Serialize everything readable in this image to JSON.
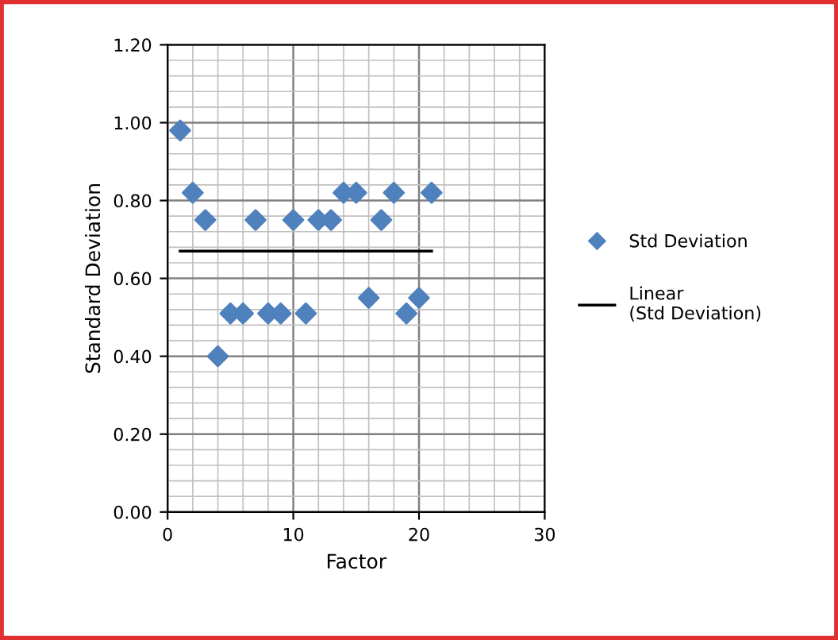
{
  "chart_data": {
    "type": "scatter",
    "xlabel": "Factor",
    "ylabel": "Standard Deviation",
    "xlim": [
      0,
      30
    ],
    "xticks": [
      0,
      10,
      20,
      30
    ],
    "ylim": [
      0,
      1.2
    ],
    "yticks": [
      {
        "value": 0,
        "label": "0.00"
      },
      {
        "value": 0.2,
        "label": "0.20"
      },
      {
        "value": 0.4,
        "label": "0.40"
      },
      {
        "value": 0.6,
        "label": "0.60"
      },
      {
        "value": 0.8,
        "label": "0.80"
      },
      {
        "value": 1.0,
        "label": "1.00"
      },
      {
        "value": 1.2,
        "label": "1.20"
      }
    ],
    "grid": true,
    "legend": "right",
    "marker": "diamond",
    "series": [
      {
        "name": "Std Deviation",
        "color": "#4f81bd",
        "x": [
          1,
          2,
          3,
          4,
          5,
          6,
          7,
          8,
          9,
          10,
          11,
          12,
          13,
          14,
          15,
          16,
          17,
          18,
          19,
          20,
          21
        ],
        "values": [
          0.98,
          0.82,
          0.75,
          0.4,
          0.51,
          0.51,
          0.75,
          0.51,
          0.51,
          0.75,
          0.51,
          0.75,
          0.75,
          0.82,
          0.82,
          0.55,
          0.75,
          0.82,
          0.51,
          0.55,
          0.82
        ]
      },
      {
        "name": "Linear (Std Deviation)",
        "type": "line",
        "color": "#000000",
        "x": [
          1,
          21
        ],
        "values": [
          0.67,
          0.67
        ],
        "marker": "none",
        "line_style": "solid"
      }
    ]
  }
}
